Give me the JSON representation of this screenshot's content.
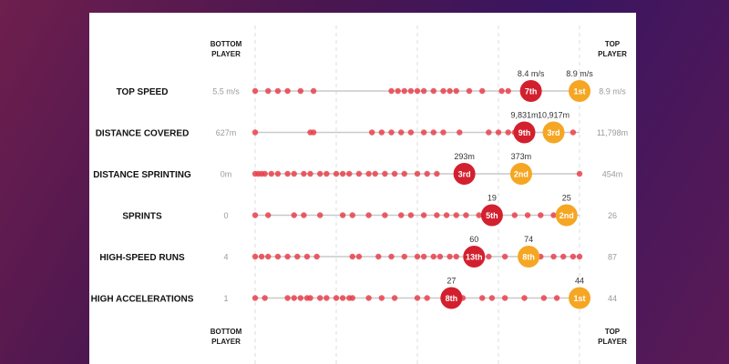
{
  "colors": {
    "dot": "#e8414b",
    "rank_red": "#d3202e",
    "rank_orange": "#f5a623",
    "track": "#c9c9c9",
    "grid": "#dddddd"
  },
  "headers": {
    "bottom_line1": "BOTTOM",
    "bottom_line2": "PLAYER",
    "top_line1": "TOP",
    "top_line2": "PLAYER"
  },
  "chart_data": {
    "type": "scatter",
    "rows": [
      {
        "label": "TOP SPEED",
        "min_label": "5.5 m/s",
        "max_label": "8.9 m/s",
        "dots": [
          0,
          0.04,
          0.07,
          0.1,
          0.14,
          0.18,
          0.42,
          0.44,
          0.46,
          0.48,
          0.5,
          0.52,
          0.55,
          0.58,
          0.6,
          0.62,
          0.66,
          0.7,
          0.76,
          0.78,
          0.98
        ],
        "callouts": [
          {
            "value": "8.4 m/s",
            "rank": "7th",
            "pos": 0.85,
            "color": "red"
          },
          {
            "value": "8.9 m/s",
            "rank": "1st",
            "pos": 1.0,
            "color": "orange"
          }
        ]
      },
      {
        "label": "DISTANCE COVERED",
        "min_label": "627m",
        "max_label": "11,798m",
        "dots": [
          0,
          0.17,
          0.18,
          0.36,
          0.39,
          0.42,
          0.45,
          0.48,
          0.52,
          0.55,
          0.58,
          0.63,
          0.72,
          0.75,
          0.78,
          0.8,
          0.82,
          0.91,
          0.98
        ],
        "callouts": [
          {
            "value": "9,831m",
            "rank": "9th",
            "pos": 0.83,
            "color": "red"
          },
          {
            "value": "10,917m",
            "rank": "3rd",
            "pos": 0.92,
            "color": "orange"
          }
        ]
      },
      {
        "label": "DISTANCE SPRINTING",
        "min_label": "0m",
        "max_label": "454m",
        "dots": [
          0,
          0.01,
          0.02,
          0.03,
          0.05,
          0.07,
          0.1,
          0.12,
          0.15,
          0.17,
          0.2,
          0.22,
          0.25,
          0.27,
          0.29,
          0.32,
          0.35,
          0.37,
          0.4,
          0.43,
          0.46,
          0.5,
          0.53,
          0.56,
          0.63,
          0.66,
          1.0
        ],
        "callouts": [
          {
            "value": "293m",
            "rank": "3rd",
            "pos": 0.645,
            "color": "red"
          },
          {
            "value": "373m",
            "rank": "2nd",
            "pos": 0.82,
            "color": "orange"
          }
        ]
      },
      {
        "label": "SPRINTS",
        "min_label": "0",
        "max_label": "26",
        "dots": [
          0,
          0.04,
          0.12,
          0.15,
          0.2,
          0.27,
          0.3,
          0.35,
          0.4,
          0.45,
          0.48,
          0.52,
          0.56,
          0.59,
          0.62,
          0.65,
          0.69,
          0.73,
          0.8,
          0.84,
          0.88,
          0.92
        ],
        "callouts": [
          {
            "value": "19",
            "rank": "5th",
            "pos": 0.73,
            "color": "red"
          },
          {
            "value": "25",
            "rank": "2nd",
            "pos": 0.96,
            "color": "orange"
          }
        ]
      },
      {
        "label": "HIGH-SPEED RUNS",
        "min_label": "4",
        "max_label": "87",
        "dots": [
          0,
          0.02,
          0.04,
          0.07,
          0.1,
          0.13,
          0.16,
          0.19,
          0.3,
          0.32,
          0.38,
          0.42,
          0.46,
          0.5,
          0.52,
          0.55,
          0.57,
          0.6,
          0.62,
          0.67,
          0.72,
          0.77,
          0.88,
          0.92,
          0.95,
          0.98,
          1.0
        ],
        "callouts": [
          {
            "value": "60",
            "rank": "13th",
            "pos": 0.675,
            "color": "red"
          },
          {
            "value": "74",
            "rank": "8th",
            "pos": 0.843,
            "color": "orange"
          }
        ]
      },
      {
        "label": "HIGH ACCELERATIONS",
        "min_label": "1",
        "max_label": "44",
        "dots": [
          0,
          0.03,
          0.1,
          0.12,
          0.14,
          0.16,
          0.17,
          0.2,
          0.22,
          0.25,
          0.27,
          0.29,
          0.3,
          0.35,
          0.39,
          0.43,
          0.5,
          0.53,
          0.58,
          0.64,
          0.7,
          0.73,
          0.77,
          0.83,
          0.89,
          0.93,
          1.0
        ],
        "callouts": [
          {
            "value": "27",
            "rank": "8th",
            "pos": 0.605,
            "color": "red"
          },
          {
            "value": "44",
            "rank": "1st",
            "pos": 1.0,
            "color": "orange"
          }
        ]
      }
    ]
  }
}
